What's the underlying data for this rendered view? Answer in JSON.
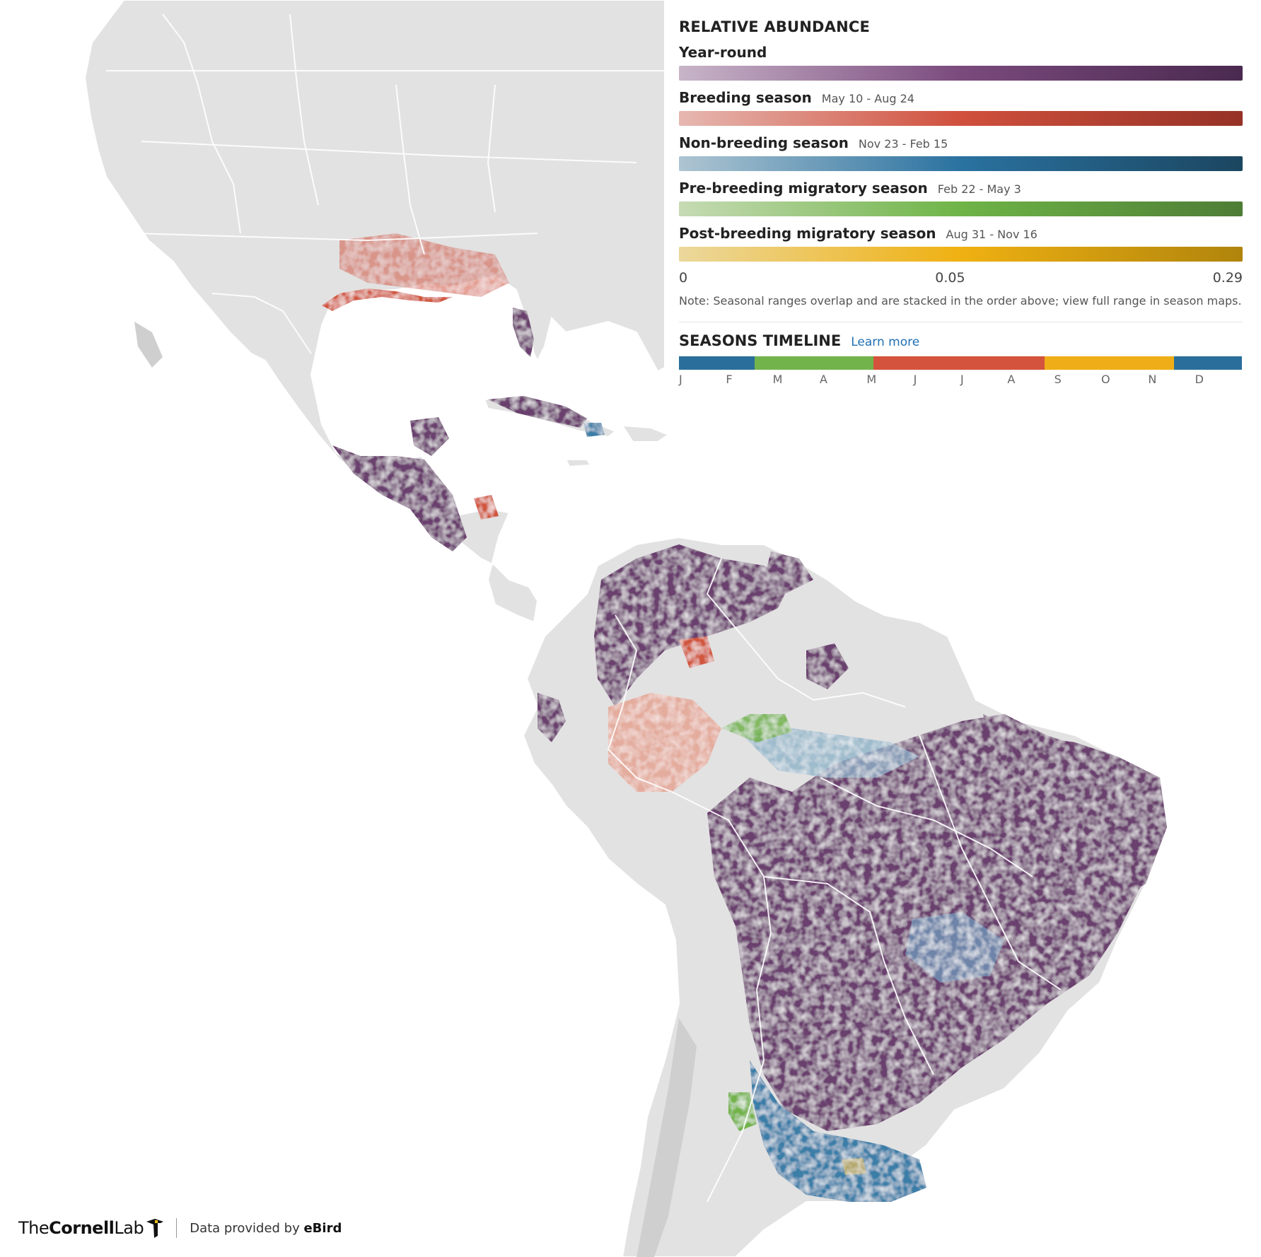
{
  "legend": {
    "title": "RELATIVE ABUNDANCE",
    "seasons": [
      {
        "name": "Year-round",
        "dates": "",
        "colors": [
          "#c8b5c9",
          "#7a4a7d",
          "#4a2a4f"
        ]
      },
      {
        "name": "Breeding season",
        "dates": "May 10 - Aug 24",
        "colors": [
          "#e6b8b1",
          "#d0503d",
          "#963226"
        ]
      },
      {
        "name": "Non-breeding season",
        "dates": "Nov 23 - Feb 15",
        "colors": [
          "#aec5d2",
          "#2a72a0",
          "#1b4660"
        ]
      },
      {
        "name": "Pre-breeding migratory season",
        "dates": "Feb 22 - May 3",
        "colors": [
          "#c6dbb4",
          "#6eb447",
          "#4e7d36"
        ]
      },
      {
        "name": "Post-breeding migratory season",
        "dates": "Aug 31 - Nov 16",
        "colors": [
          "#ecd89c",
          "#efb112",
          "#b0840c"
        ]
      }
    ],
    "scale": {
      "min": "0",
      "mid": "0.05",
      "max": "0.29"
    },
    "note": "Note: Seasonal ranges overlap and are stacked in the order above; view full range in season maps.",
    "timeline_title": "SEASONS TIMELINE",
    "learn_more": "Learn more",
    "months": [
      "J",
      "F",
      "M",
      "A",
      "M",
      "J",
      "J",
      "A",
      "S",
      "O",
      "N",
      "D"
    ],
    "timeline_segments": [
      {
        "season": "Non-breeding",
        "from": 0,
        "to": 0.135,
        "color": "#2a6f9b"
      },
      {
        "season": "Pre-breeding migratory",
        "from": 0.135,
        "to": 0.345,
        "color": "#73b34b"
      },
      {
        "season": "Breeding",
        "from": 0.345,
        "to": 0.65,
        "color": "#d4533c"
      },
      {
        "season": "Post-breeding migratory",
        "from": 0.65,
        "to": 0.88,
        "color": "#efae17"
      },
      {
        "season": "Non-breeding",
        "from": 0.88,
        "to": 1.0,
        "color": "#2a6f9b"
      }
    ]
  },
  "footer": {
    "logo_pre": "The",
    "logo_bold": "Cornell",
    "logo_post": "Lab",
    "credit_pre": "Data provided by ",
    "credit_bold": "eBird"
  },
  "map_colors": {
    "land": "#e2e2e2",
    "year_round": "#6b3f6e",
    "breeding": "#d1563e",
    "non_breeding": "#3a7ea8",
    "pre_breeding": "#72b24a",
    "post_breeding": "#e6b84a"
  }
}
